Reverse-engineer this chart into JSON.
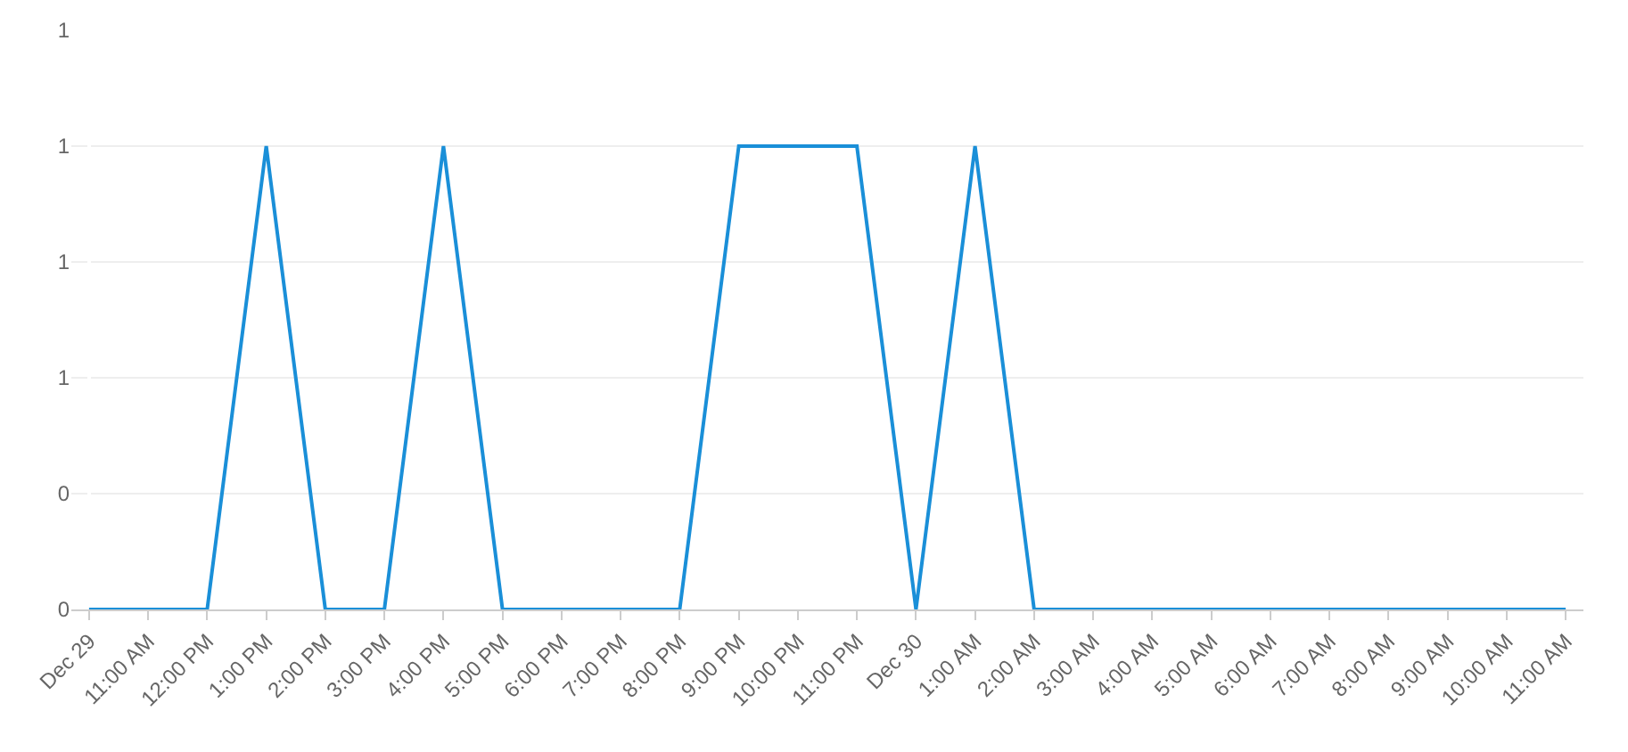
{
  "chart_data": {
    "type": "line",
    "categories": [
      "Dec 29",
      "11:00 AM",
      "12:00 PM",
      "1:00 PM",
      "2:00 PM",
      "3:00 PM",
      "4:00 PM",
      "5:00 PM",
      "6:00 PM",
      "7:00 PM",
      "8:00 PM",
      "9:00 PM",
      "10:00 PM",
      "11:00 PM",
      "Dec 30",
      "1:00 AM",
      "2:00 AM",
      "3:00 AM",
      "4:00 AM",
      "5:00 AM",
      "6:00 AM",
      "7:00 AM",
      "8:00 AM",
      "9:00 AM",
      "10:00 AM",
      "11:00 AM"
    ],
    "series": [
      {
        "color": "#1a8fd8",
        "values": [
          0,
          0,
          0,
          1,
          0,
          0,
          1,
          0,
          0,
          0,
          0,
          1,
          1,
          1,
          0,
          1,
          0,
          0,
          0,
          0,
          0,
          0,
          0,
          0,
          0,
          0
        ]
      }
    ],
    "ylim": [
      0,
      1.25
    ],
    "yticks": [
      {
        "value": 0,
        "label": "0"
      },
      {
        "value": 0.25,
        "label": "0"
      },
      {
        "value": 0.5,
        "label": "1"
      },
      {
        "value": 0.75,
        "label": "1"
      },
      {
        "value": 1,
        "label": "1"
      },
      {
        "value": 1.25,
        "label": "1"
      }
    ],
    "grid": "y",
    "legend": false,
    "marker": "none",
    "line_style": "solid"
  }
}
